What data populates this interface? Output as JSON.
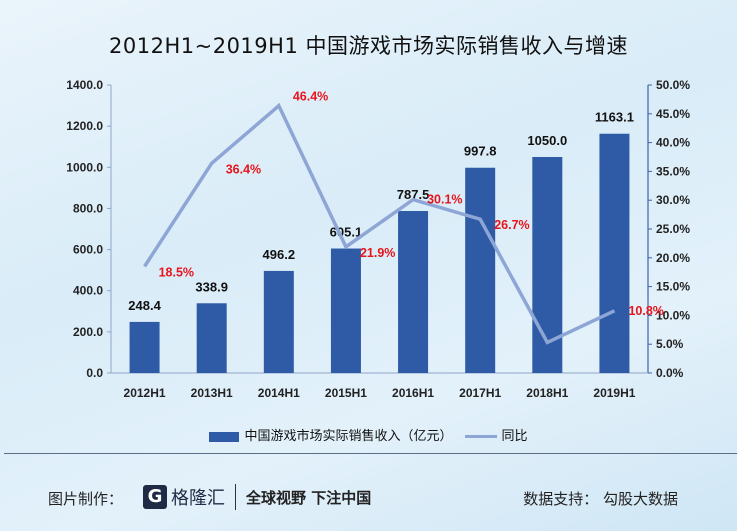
{
  "chart_data": {
    "type": "bar+line",
    "title": "2012H1~2019H1 中国游戏市场实际销售收入与增速",
    "categories": [
      "2012H1",
      "2013H1",
      "2014H1",
      "2015H1",
      "2016H1",
      "2017H1",
      "2018H1",
      "2019H1"
    ],
    "series": [
      {
        "name": "中国游戏市场实际销售收入（亿元）",
        "type": "bar",
        "axis": "left",
        "values": [
          248.4,
          338.9,
          496.2,
          605.1,
          787.5,
          997.8,
          1050.0,
          1163.1
        ],
        "labels": [
          "248.4",
          "338.9",
          "496.2",
          "605.1",
          "787.5",
          "997.8",
          "1050.0",
          "1163.1"
        ],
        "color": "#2e5aa6"
      },
      {
        "name": "同比",
        "type": "line",
        "axis": "right",
        "values": [
          18.5,
          36.4,
          46.4,
          21.9,
          30.1,
          26.7,
          5.3,
          10.8
        ],
        "labels": [
          "18.5%",
          "36.4%",
          "46.4%",
          "21.9%",
          "30.1%",
          "26.7%",
          "",
          "10.8%"
        ],
        "color": "#8ea6d6",
        "label_color": "#e8141b"
      }
    ],
    "y_left": {
      "range": [
        0,
        1400
      ],
      "ticks": [
        "0.0",
        "200.0",
        "400.0",
        "600.0",
        "800.0",
        "1000.0",
        "1200.0",
        "1400.0"
      ]
    },
    "y_right": {
      "range": [
        0,
        50
      ],
      "ticks": [
        "0.0%",
        "5.0%",
        "10.0%",
        "15.0%",
        "20.0%",
        "25.0%",
        "30.0%",
        "35.0%",
        "40.0%",
        "45.0%",
        "50.0%"
      ]
    },
    "grid": false,
    "legend_placement": "bottom"
  },
  "footer": {
    "made_by": "图片制作：",
    "logo_text": "格隆汇",
    "slogan": "全球视野 下注中国",
    "source": "数据支持：  勾股大数据"
  }
}
